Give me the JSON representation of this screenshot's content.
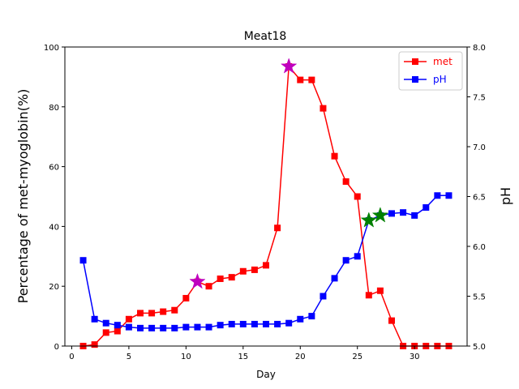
{
  "chart_data": {
    "type": "line",
    "title": "Meat18",
    "xlabel": "Day",
    "ylabel_left": "Percentage of met-myoglobin(%)",
    "ylabel_right": "pH",
    "xlim": [
      -0.6,
      34.6
    ],
    "ylim_left": [
      0,
      100
    ],
    "ylim_right": [
      5.0,
      8.0
    ],
    "xticks": [
      0,
      5,
      10,
      15,
      20,
      25,
      30
    ],
    "yticks_left": [
      0,
      20,
      40,
      60,
      80,
      100
    ],
    "yticks_right": [
      5.0,
      5.5,
      6.0,
      6.5,
      7.0,
      7.5,
      8.0
    ],
    "grid": false,
    "legend_position": "top-right",
    "series": [
      {
        "name": "met",
        "axis": "left",
        "color": "#ff0000",
        "marker": "square",
        "x": [
          1,
          2,
          3,
          4,
          5,
          6,
          7,
          8,
          9,
          10,
          11,
          12,
          13,
          14,
          15,
          16,
          17,
          18,
          19,
          20,
          21,
          22,
          23,
          24,
          25,
          26,
          27,
          28,
          29,
          30,
          31,
          32,
          33
        ],
        "y": [
          0,
          0.5,
          4.5,
          5,
          9,
          11,
          11,
          11.5,
          12,
          16,
          21.5,
          20,
          22.5,
          23,
          25,
          25.5,
          27,
          39.5,
          93.5,
          89,
          89,
          79.5,
          63.5,
          55,
          50,
          17,
          18.5,
          8.5,
          0,
          0,
          0,
          0,
          0
        ]
      },
      {
        "name": "pH",
        "axis": "right",
        "color": "#0000ff",
        "marker": "square",
        "x": [
          1,
          2,
          3,
          4,
          5,
          6,
          7,
          8,
          9,
          10,
          11,
          12,
          13,
          14,
          15,
          16,
          17,
          18,
          19,
          20,
          21,
          22,
          23,
          24,
          25,
          26,
          27,
          28,
          29,
          30,
          31,
          32,
          33
        ],
        "y": [
          5.86,
          5.27,
          5.23,
          5.21,
          5.19,
          5.18,
          5.18,
          5.18,
          5.18,
          5.19,
          5.19,
          5.19,
          5.21,
          5.22,
          5.22,
          5.22,
          5.22,
          5.22,
          5.23,
          5.27,
          5.3,
          5.5,
          5.68,
          5.86,
          5.9,
          6.26,
          6.31,
          6.33,
          6.34,
          6.31,
          6.39,
          6.51,
          6.51
        ]
      }
    ],
    "star_markers": [
      {
        "x": 11,
        "y": 21.5,
        "axis": "left",
        "color": "#bf00bf"
      },
      {
        "x": 19,
        "y": 93.5,
        "axis": "left",
        "color": "#bf00bf"
      },
      {
        "x": 26,
        "y": 6.26,
        "axis": "right",
        "color": "#008000"
      },
      {
        "x": 27,
        "y": 6.31,
        "axis": "right",
        "color": "#008000"
      }
    ]
  }
}
